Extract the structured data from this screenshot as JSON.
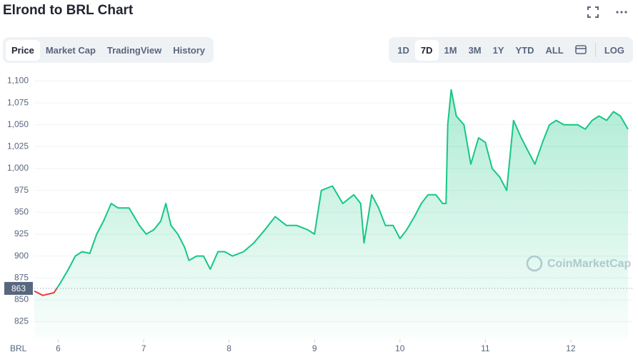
{
  "tabs": [
    "Price",
    "Market Cap",
    "TradingView",
    "History"
  ],
  "active_tab": 0,
  "ranges": [
    "1D",
    "7D",
    "1M",
    "3M",
    "1Y",
    "YTD",
    "ALL"
  ],
  "active_range": 1,
  "log_button": "LOG",
  "watermark": "CoinMarketCap",
  "chart_data": {
    "type": "line",
    "title": "Elrond to BRL Chart",
    "currency_label": "BRL",
    "baseline": 863,
    "up_color": "#16c784",
    "down_color": "#ea3943",
    "grid": true,
    "xlim": [
      5.72,
      12.72
    ],
    "xticks": [
      6,
      7,
      8,
      9,
      10,
      11,
      12
    ],
    "ylim": [
      805,
      1111
    ],
    "yticks": [
      825,
      850,
      875,
      900,
      925,
      950,
      975,
      {
        "value": 1000,
        "label": "1,000"
      },
      {
        "value": 1025,
        "label": "1,025"
      },
      {
        "value": 1050,
        "label": "1,050"
      },
      {
        "value": 1075,
        "label": "1,075"
      },
      {
        "value": 1100,
        "label": "1,100"
      }
    ],
    "x": [
      5.72,
      5.82,
      5.95,
      6.03,
      6.12,
      6.2,
      6.28,
      6.37,
      6.45,
      6.53,
      6.62,
      6.7,
      6.83,
      6.95,
      7.03,
      7.12,
      7.2,
      7.26,
      7.32,
      7.4,
      7.48,
      7.53,
      7.62,
      7.7,
      7.78,
      7.87,
      7.95,
      8.04,
      8.17,
      8.29,
      8.42,
      8.54,
      8.67,
      8.79,
      8.92,
      9.0,
      9.08,
      9.21,
      9.33,
      9.46,
      9.54,
      9.58,
      9.67,
      9.75,
      9.83,
      9.92,
      10.0,
      10.08,
      10.17,
      10.25,
      10.33,
      10.42,
      10.5,
      10.54,
      10.56,
      10.6,
      10.66,
      10.75,
      10.83,
      10.92,
      11.0,
      11.08,
      11.17,
      11.25,
      11.33,
      11.42,
      11.5,
      11.58,
      11.67,
      11.75,
      11.83,
      11.92,
      12.0,
      12.08,
      12.17,
      12.25,
      12.33,
      12.42,
      12.5,
      12.58,
      12.67
    ],
    "values": [
      860,
      855,
      858,
      870,
      885,
      900,
      905,
      903,
      925,
      940,
      960,
      955,
      955,
      935,
      925,
      930,
      940,
      960,
      935,
      925,
      910,
      895,
      900,
      900,
      885,
      905,
      905,
      900,
      905,
      915,
      930,
      945,
      935,
      935,
      930,
      925,
      975,
      980,
      960,
      970,
      960,
      915,
      970,
      955,
      935,
      935,
      920,
      930,
      945,
      960,
      970,
      970,
      960,
      960,
      1050,
      1090,
      1060,
      1050,
      1005,
      1035,
      1030,
      1000,
      990,
      975,
      1055,
      1035,
      1020,
      1005,
      1030,
      1050,
      1055,
      1050,
      1050,
      1050,
      1045,
      1055,
      1060,
      1055,
      1065,
      1060,
      1045
    ]
  }
}
